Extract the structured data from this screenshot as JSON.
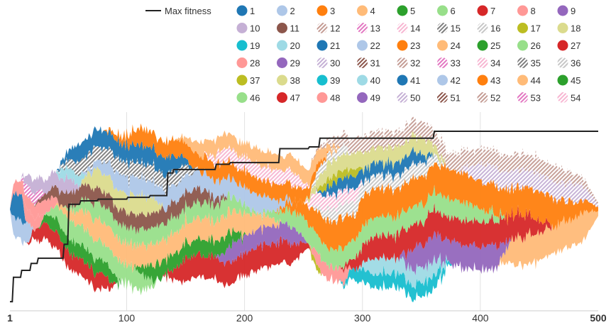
{
  "chart_data": {
    "type": "area",
    "stacked": true,
    "x_range": [
      1,
      500
    ],
    "x_ticks": [
      {
        "value": 1,
        "label": "1",
        "bold": true
      },
      {
        "value": 100,
        "label": "100",
        "bold": false
      },
      {
        "value": 200,
        "label": "200",
        "bold": false
      },
      {
        "value": 300,
        "label": "300",
        "bold": false
      },
      {
        "value": 400,
        "label": "400",
        "bold": false
      },
      {
        "value": 500,
        "label": "500",
        "bold": true
      }
    ],
    "grid": "vertical",
    "legend_placement": "top",
    "max_fitness": {
      "label": "Max fitness",
      "color": "#222222",
      "points": [
        [
          1,
          0.02
        ],
        [
          3,
          0.02
        ],
        [
          4,
          0.16
        ],
        [
          10,
          0.16
        ],
        [
          11,
          0.2
        ],
        [
          18,
          0.2
        ],
        [
          19,
          0.24
        ],
        [
          24,
          0.24
        ],
        [
          25,
          0.27
        ],
        [
          46,
          0.27
        ],
        [
          47,
          0.35
        ],
        [
          50,
          0.35
        ],
        [
          51,
          0.58
        ],
        [
          60,
          0.58
        ],
        [
          61,
          0.6
        ],
        [
          75,
          0.6
        ],
        [
          76,
          0.61
        ],
        [
          100,
          0.61
        ],
        [
          101,
          0.62
        ],
        [
          119,
          0.62
        ],
        [
          120,
          0.63
        ],
        [
          134,
          0.63
        ],
        [
          135,
          0.76
        ],
        [
          139,
          0.76
        ],
        [
          140,
          0.78
        ],
        [
          175,
          0.78
        ],
        [
          176,
          0.81
        ],
        [
          187,
          0.81
        ],
        [
          188,
          0.82
        ],
        [
          229,
          0.82
        ],
        [
          230,
          0.9
        ],
        [
          254,
          0.9
        ],
        [
          255,
          0.91
        ],
        [
          263,
          0.91
        ],
        [
          264,
          0.96
        ],
        [
          360,
          0.96
        ],
        [
          361,
          1.0
        ],
        [
          500,
          1.0
        ]
      ]
    },
    "series": [
      {
        "name": "1",
        "color": "#1f77b4"
      },
      {
        "name": "2",
        "color": "#aec7e8"
      },
      {
        "name": "3",
        "color": "#ff7f0e"
      },
      {
        "name": "4",
        "color": "#ffbb78"
      },
      {
        "name": "5",
        "color": "#2ca02c"
      },
      {
        "name": "6",
        "color": "#98df8a"
      },
      {
        "name": "7",
        "color": "#d62728"
      },
      {
        "name": "8",
        "color": "#ff9896"
      },
      {
        "name": "9",
        "color": "#9467bd"
      },
      {
        "name": "10",
        "color": "#c5b0d5"
      },
      {
        "name": "11",
        "color": "#8c564b"
      },
      {
        "name": "12",
        "color": "#c49c94"
      },
      {
        "name": "13",
        "color": "#e377c2"
      },
      {
        "name": "14",
        "color": "#f7b6d2"
      },
      {
        "name": "15",
        "color": "#7f7f7f"
      },
      {
        "name": "16",
        "color": "#c7c7c7"
      },
      {
        "name": "17",
        "color": "#bcbd22"
      },
      {
        "name": "18",
        "color": "#dbdb8d"
      },
      {
        "name": "19",
        "color": "#17becf"
      },
      {
        "name": "20",
        "color": "#9edae5"
      },
      {
        "name": "21",
        "color": "#1f77b4"
      },
      {
        "name": "22",
        "color": "#aec7e8"
      },
      {
        "name": "23",
        "color": "#ff7f0e"
      },
      {
        "name": "24",
        "color": "#ffbb78"
      },
      {
        "name": "25",
        "color": "#2ca02c"
      },
      {
        "name": "26",
        "color": "#98df8a"
      },
      {
        "name": "27",
        "color": "#d62728"
      },
      {
        "name": "28",
        "color": "#ff9896"
      },
      {
        "name": "29",
        "color": "#9467bd"
      },
      {
        "name": "30",
        "color": "#c5b0d5"
      },
      {
        "name": "31",
        "color": "#8c564b"
      },
      {
        "name": "32",
        "color": "#c49c94"
      },
      {
        "name": "33",
        "color": "#e377c2"
      },
      {
        "name": "34",
        "color": "#f7b6d2"
      },
      {
        "name": "35",
        "color": "#7f7f7f"
      },
      {
        "name": "36",
        "color": "#c7c7c7"
      },
      {
        "name": "37",
        "color": "#bcbd22"
      },
      {
        "name": "38",
        "color": "#dbdb8d"
      },
      {
        "name": "39",
        "color": "#17becf"
      },
      {
        "name": "40",
        "color": "#9edae5"
      },
      {
        "name": "41",
        "color": "#1f77b4"
      },
      {
        "name": "42",
        "color": "#aec7e8"
      },
      {
        "name": "43",
        "color": "#ff7f0e"
      },
      {
        "name": "44",
        "color": "#ffbb78"
      },
      {
        "name": "45",
        "color": "#2ca02c"
      },
      {
        "name": "46",
        "color": "#98df8a"
      },
      {
        "name": "47",
        "color": "#d62728"
      },
      {
        "name": "48",
        "color": "#ff9896"
      },
      {
        "name": "49",
        "color": "#9467bd"
      },
      {
        "name": "50",
        "color": "#c5b0d5"
      },
      {
        "name": "51",
        "color": "#8c564b"
      },
      {
        "name": "52",
        "color": "#c49c94"
      },
      {
        "name": "53",
        "color": "#e377c2"
      },
      {
        "name": "54",
        "color": "#f7b6d2"
      }
    ],
    "stack_bottom_to_top": [
      {
        "series": "7",
        "start": 15,
        "end": 90,
        "peak": 26
      },
      {
        "series": "2",
        "start": 1,
        "end": 20,
        "peak": 30
      },
      {
        "series": "5",
        "start": 25,
        "end": 95,
        "peak": 22
      },
      {
        "series": "1",
        "start": 1,
        "end": 14,
        "peak": 40
      },
      {
        "series": "47",
        "start": 130,
        "end": 255,
        "peak": 36
      },
      {
        "series": "6",
        "start": 30,
        "end": 125,
        "peak": 30
      },
      {
        "series": "29",
        "start": 175,
        "end": 252,
        "peak": 28
      },
      {
        "series": "45",
        "start": 105,
        "end": 200,
        "peak": 25
      },
      {
        "series": "4",
        "start": 38,
        "end": 230,
        "peak": 34
      },
      {
        "series": "37",
        "start": 255,
        "end": 265,
        "peak": 10
      },
      {
        "series": "28",
        "start": 1,
        "end": 30,
        "peak": 20
      },
      {
        "series": "39",
        "start": 280,
        "end": 375,
        "peak": 22
      },
      {
        "series": "40",
        "start": 295,
        "end": 372,
        "peak": 24
      },
      {
        "series": "44",
        "start": 415,
        "end": 500,
        "peak": 45
      },
      {
        "series": "49",
        "start": 330,
        "end": 425,
        "peak": 38
      },
      {
        "series": "26",
        "start": 45,
        "end": 210,
        "peak": 26
      },
      {
        "series": "48",
        "start": 255,
        "end": 290,
        "peak": 22
      },
      {
        "series": "27",
        "start": 280,
        "end": 460,
        "peak": 38
      },
      {
        "series": "8",
        "start": 10,
        "end": 42,
        "peak": 20
      },
      {
        "series": "46",
        "start": 210,
        "end": 420,
        "peak": 30
      },
      {
        "series": "3",
        "start": 225,
        "end": 500,
        "peak": 46
      },
      {
        "series": "11",
        "start": 20,
        "end": 185,
        "peak": 24
      },
      {
        "series": "18",
        "start": 60,
        "end": 130,
        "peak": 30
      },
      {
        "series": "13",
        "start": 10,
        "end": 30,
        "peak": 16
      },
      {
        "series": "10",
        "start": 10,
        "end": 60,
        "peak": 22
      },
      {
        "series": "20",
        "start": 40,
        "end": 65,
        "peak": 16
      },
      {
        "series": "22",
        "start": 60,
        "end": 240,
        "peak": 28
      },
      {
        "series": "36",
        "start": 255,
        "end": 370,
        "peak": 22
      },
      {
        "series": "14",
        "start": 250,
        "end": 300,
        "peak": 22
      },
      {
        "series": "15",
        "start": 40,
        "end": 160,
        "peak": 24
      },
      {
        "series": "21",
        "start": 40,
        "end": 155,
        "peak": 28
      },
      {
        "series": "41",
        "start": 260,
        "end": 360,
        "peak": 20
      },
      {
        "series": "17",
        "start": 260,
        "end": 300,
        "peak": 12
      },
      {
        "series": "38",
        "start": 250,
        "end": 370,
        "peak": 26
      },
      {
        "series": "16",
        "start": 255,
        "end": 290,
        "peak": 14
      },
      {
        "series": "23",
        "start": 80,
        "end": 270,
        "peak": 26
      },
      {
        "series": "34",
        "start": 165,
        "end": 255,
        "peak": 22
      },
      {
        "series": "24",
        "start": 140,
        "end": 280,
        "peak": 24
      },
      {
        "series": "50",
        "start": 380,
        "end": 500,
        "peak": 28
      },
      {
        "series": "12",
        "start": 255,
        "end": 500,
        "peak": 26
      }
    ]
  }
}
